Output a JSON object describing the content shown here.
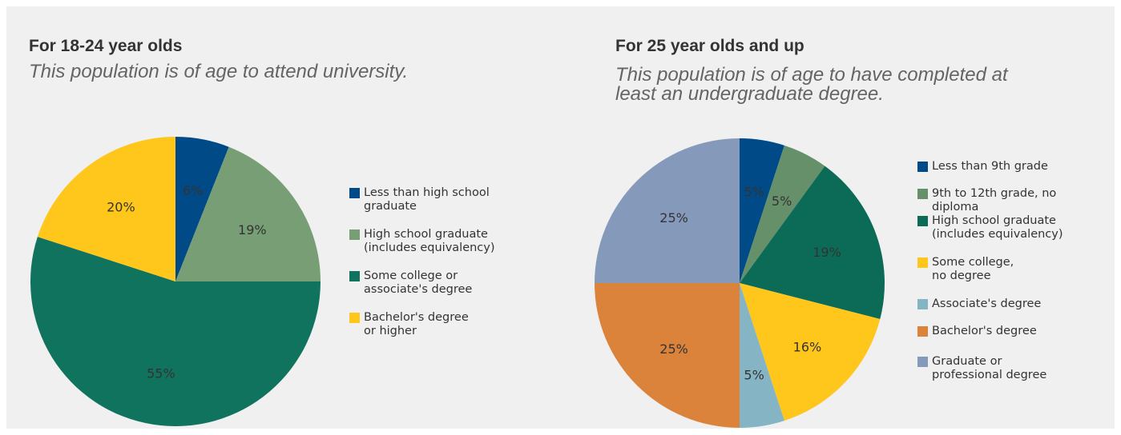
{
  "chart_data": [
    {
      "type": "pie",
      "title": "For 18-24 year olds",
      "subtitle": [
        "This population is of age to attend university."
      ],
      "legend_position": "right",
      "slices": [
        {
          "name": [
            "Less than high school",
            "graduate"
          ],
          "value": 6,
          "label": "6%",
          "color": "#004b87"
        },
        {
          "name": [
            "High school graduate",
            "(includes equivalency)"
          ],
          "value": 19,
          "label": "19%",
          "color": "#779e74"
        },
        {
          "name": [
            "Some college or",
            "associate's degree"
          ],
          "value": 55,
          "label": "55%",
          "color": "#10735e"
        },
        {
          "name": [
            "Bachelor's degree",
            "or higher"
          ],
          "value": 20,
          "label": "20%",
          "color": "#ffc61b"
        }
      ]
    },
    {
      "type": "pie",
      "title": "For 25 year olds and up",
      "subtitle": [
        "This population is of age to have completed at",
        "least an undergraduate degree."
      ],
      "legend_position": "right",
      "slices": [
        {
          "name": [
            "Less than 9th grade"
          ],
          "value": 5,
          "label": "5%",
          "color": "#004b87"
        },
        {
          "name": [
            "9th to 12th grade, no",
            "diploma"
          ],
          "value": 5,
          "label": "5%",
          "color": "#66906a"
        },
        {
          "name": [
            "High school graduate",
            "(includes equivalency)"
          ],
          "value": 19,
          "label": "19%",
          "color": "#0c6b57"
        },
        {
          "name": [
            "Some college,",
            "no degree"
          ],
          "value": 16,
          "label": "16%",
          "color": "#ffc61b"
        },
        {
          "name": [
            "Associate's degree"
          ],
          "value": 5,
          "label": "5%",
          "color": "#85b5c4"
        },
        {
          "name": [
            "Bachelor's degree"
          ],
          "value": 25,
          "label": "25%",
          "color": "#db833a"
        },
        {
          "name": [
            "Graduate or",
            "professional degree"
          ],
          "value": 25,
          "label": "25%",
          "color": "#8599bb"
        }
      ]
    }
  ]
}
